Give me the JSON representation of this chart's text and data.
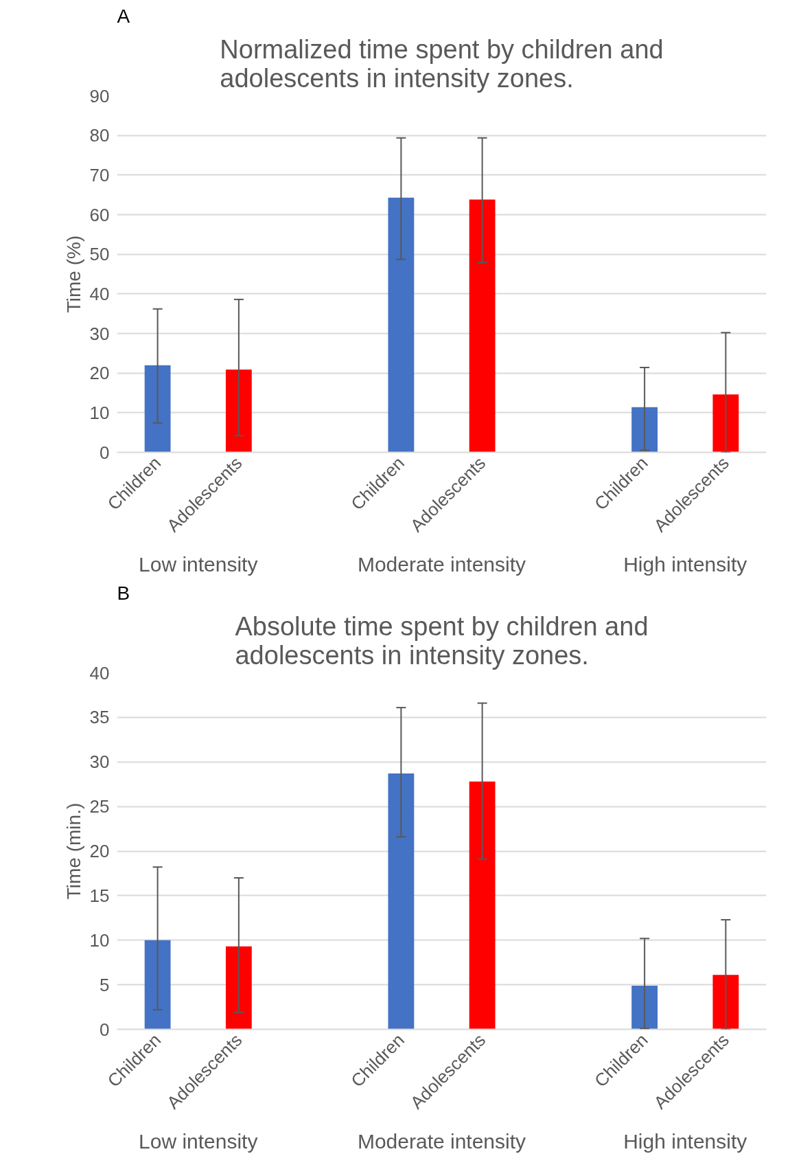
{
  "chart_data": [
    {
      "type": "bar",
      "title": "Normalized time spent by children and adolescents in intensity zones.",
      "ylabel": "Time (%)",
      "categories": [
        "Children",
        "Adolescents",
        null,
        "Children",
        "Adolescents",
        null,
        "Children",
        "Adolescents"
      ],
      "values": [
        22.0,
        20.9,
        null,
        64.3,
        63.8,
        null,
        11.4,
        14.6
      ],
      "colors": [
        "#4472c4",
        "#ff0000",
        null,
        "#4472c4",
        "#ff0000",
        null,
        "#4472c4",
        "#ff0000"
      ],
      "errors": [
        [
          7.4,
          36.2
        ],
        [
          4.2,
          38.6
        ],
        null,
        [
          48.7,
          79.4
        ],
        [
          47.9,
          79.4
        ],
        null,
        [
          0.5,
          21.4
        ],
        [
          0,
          30.2
        ]
      ],
      "ylim": [
        0,
        90
      ],
      "yticks": [
        0,
        10,
        20,
        30,
        40,
        50,
        60,
        70,
        80,
        90
      ],
      "grid": "y",
      "annotations": [
        "A",
        "Low intensity",
        "Moderate intensity",
        "High intensity"
      ]
    },
    {
      "type": "bar",
      "title": "Absolute time spent by children and adolescents in intensity zones.",
      "ylabel": "Time (min.)",
      "categories": [
        "Children",
        "Adolescents",
        null,
        "Children",
        "Adolescents",
        null,
        "Children",
        "Adolescents"
      ],
      "values": [
        10.0,
        9.3,
        null,
        28.7,
        27.8,
        null,
        4.9,
        6.1
      ],
      "colors": [
        "#4472c4",
        "#ff0000",
        null,
        "#4472c4",
        "#ff0000",
        null,
        "#4472c4",
        "#ff0000"
      ],
      "errors": [
        [
          2.2,
          18.2
        ],
        [
          1.9,
          17.0
        ],
        null,
        [
          21.6,
          36.1
        ],
        [
          19.1,
          36.6
        ],
        null,
        [
          0.1,
          10.2
        ],
        [
          0,
          12.3
        ]
      ],
      "ylim": [
        0,
        40
      ],
      "yticks": [
        0,
        5,
        10,
        15,
        20,
        25,
        30,
        35,
        40
      ],
      "grid": "y",
      "annotations": [
        "B",
        "Low intensity",
        "Moderate intensity",
        "High intensity"
      ]
    }
  ]
}
